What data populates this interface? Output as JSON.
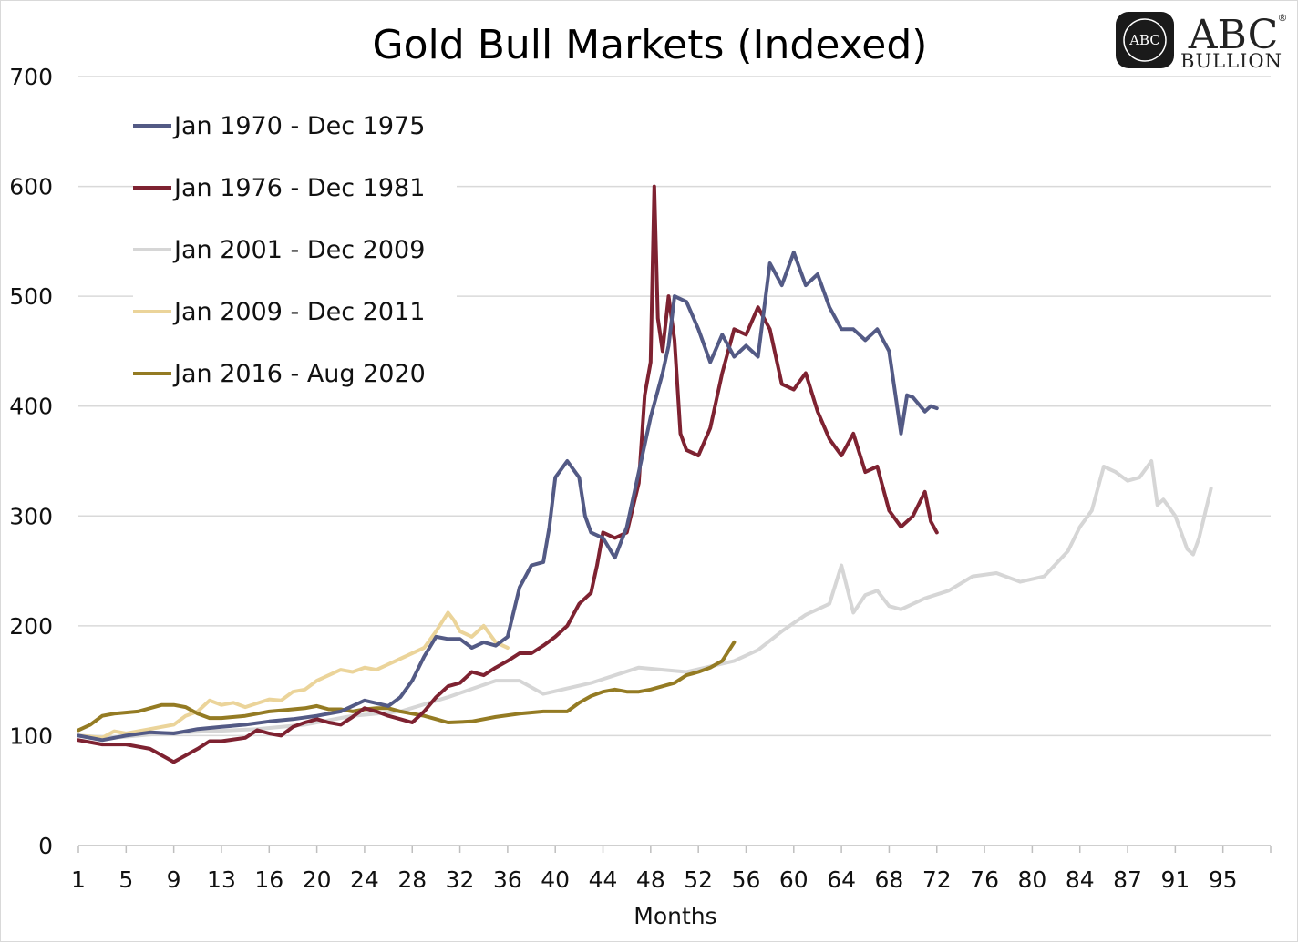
{
  "chart_data": {
    "type": "line",
    "title": "Gold Bull Markets (Indexed)",
    "xlabel": "Months",
    "ylabel": "",
    "ylim": [
      0,
      700
    ],
    "yticks": [
      "0",
      "100",
      "200",
      "300",
      "400",
      "500",
      "600",
      "700"
    ],
    "xticks": [
      "1",
      "5",
      "9",
      "13",
      "16",
      "20",
      "24",
      "28",
      "32",
      "36",
      "40",
      "44",
      "48",
      "52",
      "56",
      "60",
      "64",
      "68",
      "72",
      "76",
      "80",
      "84",
      "87",
      "91",
      "95"
    ],
    "grid": "horizontal",
    "legend_position": "top-left",
    "series": [
      {
        "name": "Jan 1970 - Dec 1975",
        "color": "#535a85",
        "points": [
          [
            1,
            100
          ],
          [
            3,
            96
          ],
          [
            5,
            100
          ],
          [
            7,
            103
          ],
          [
            9,
            102
          ],
          [
            11,
            106
          ],
          [
            13,
            108
          ],
          [
            15,
            110
          ],
          [
            17,
            113
          ],
          [
            19,
            115
          ],
          [
            21,
            118
          ],
          [
            23,
            122
          ],
          [
            25,
            132
          ],
          [
            27,
            127
          ],
          [
            28,
            135
          ],
          [
            29,
            150
          ],
          [
            30,
            172
          ],
          [
            31,
            190
          ],
          [
            32,
            188
          ],
          [
            33,
            188
          ],
          [
            34,
            180
          ],
          [
            35,
            185
          ],
          [
            36,
            182
          ],
          [
            37,
            190
          ],
          [
            38,
            235
          ],
          [
            39,
            255
          ],
          [
            40,
            258
          ],
          [
            40.5,
            290
          ],
          [
            41,
            335
          ],
          [
            42,
            350
          ],
          [
            43,
            335
          ],
          [
            43.5,
            300
          ],
          [
            44,
            285
          ],
          [
            45,
            280
          ],
          [
            46,
            262
          ],
          [
            47,
            290
          ],
          [
            48,
            340
          ],
          [
            49,
            390
          ],
          [
            50,
            430
          ],
          [
            50.5,
            455
          ],
          [
            51,
            500
          ],
          [
            52,
            495
          ],
          [
            53,
            470
          ],
          [
            54,
            440
          ],
          [
            55,
            465
          ],
          [
            56,
            445
          ],
          [
            57,
            455
          ],
          [
            58,
            445
          ],
          [
            59,
            530
          ],
          [
            60,
            510
          ],
          [
            61,
            540
          ],
          [
            62,
            510
          ],
          [
            63,
            520
          ],
          [
            64,
            490
          ],
          [
            65,
            470
          ],
          [
            66,
            470
          ],
          [
            67,
            460
          ],
          [
            68,
            470
          ],
          [
            69,
            450
          ],
          [
            70,
            375
          ],
          [
            70.5,
            410
          ],
          [
            71,
            408
          ],
          [
            72,
            395
          ],
          [
            72.5,
            400
          ],
          [
            73,
            398
          ]
        ]
      },
      {
        "name": "Jan 1976 - Dec 1981",
        "color": "#7e2231",
        "points": [
          [
            1,
            96
          ],
          [
            3,
            92
          ],
          [
            5,
            92
          ],
          [
            7,
            88
          ],
          [
            8,
            82
          ],
          [
            9,
            76
          ],
          [
            10,
            82
          ],
          [
            11,
            88
          ],
          [
            12,
            95
          ],
          [
            13,
            95
          ],
          [
            15,
            98
          ],
          [
            16,
            105
          ],
          [
            17,
            102
          ],
          [
            18,
            100
          ],
          [
            19,
            108
          ],
          [
            20,
            112
          ],
          [
            21,
            115
          ],
          [
            22,
            112
          ],
          [
            23,
            110
          ],
          [
            24,
            117
          ],
          [
            25,
            125
          ],
          [
            26,
            122
          ],
          [
            27,
            118
          ],
          [
            28,
            115
          ],
          [
            29,
            112
          ],
          [
            30,
            122
          ],
          [
            31,
            135
          ],
          [
            32,
            145
          ],
          [
            33,
            148
          ],
          [
            34,
            158
          ],
          [
            35,
            155
          ],
          [
            36,
            162
          ],
          [
            37,
            168
          ],
          [
            38,
            175
          ],
          [
            39,
            175
          ],
          [
            40,
            182
          ],
          [
            41,
            190
          ],
          [
            42,
            200
          ],
          [
            43,
            220
          ],
          [
            44,
            230
          ],
          [
            44.5,
            255
          ],
          [
            45,
            285
          ],
          [
            46,
            280
          ],
          [
            47,
            285
          ],
          [
            48,
            330
          ],
          [
            48.5,
            410
          ],
          [
            49,
            440
          ],
          [
            49.3,
            600
          ],
          [
            49.6,
            480
          ],
          [
            50,
            450
          ],
          [
            50.5,
            500
          ],
          [
            51,
            460
          ],
          [
            51.5,
            375
          ],
          [
            52,
            360
          ],
          [
            53,
            355
          ],
          [
            54,
            380
          ],
          [
            55,
            430
          ],
          [
            56,
            470
          ],
          [
            57,
            465
          ],
          [
            58,
            490
          ],
          [
            59,
            470
          ],
          [
            60,
            420
          ],
          [
            61,
            415
          ],
          [
            62,
            430
          ],
          [
            63,
            395
          ],
          [
            64,
            370
          ],
          [
            65,
            355
          ],
          [
            66,
            375
          ],
          [
            67,
            340
          ],
          [
            68,
            345
          ],
          [
            69,
            305
          ],
          [
            70,
            290
          ],
          [
            71,
            300
          ],
          [
            72,
            322
          ],
          [
            72.5,
            295
          ],
          [
            73,
            285
          ]
        ]
      },
      {
        "name": "Jan 2001 - Dec 2009",
        "color": "#d6d6d6",
        "points": [
          [
            1,
            100
          ],
          [
            4,
            98
          ],
          [
            8,
            102
          ],
          [
            12,
            104
          ],
          [
            16,
            106
          ],
          [
            20,
            110
          ],
          [
            24,
            118
          ],
          [
            28,
            122
          ],
          [
            32,
            135
          ],
          [
            36,
            150
          ],
          [
            38,
            150
          ],
          [
            40,
            138
          ],
          [
            44,
            148
          ],
          [
            48,
            162
          ],
          [
            52,
            158
          ],
          [
            56,
            168
          ],
          [
            58,
            178
          ],
          [
            60,
            195
          ],
          [
            62,
            210
          ],
          [
            64,
            220
          ],
          [
            65,
            255
          ],
          [
            66,
            212
          ],
          [
            67,
            228
          ],
          [
            68,
            232
          ],
          [
            69,
            218
          ],
          [
            70,
            215
          ],
          [
            72,
            225
          ],
          [
            74,
            232
          ],
          [
            76,
            245
          ],
          [
            78,
            248
          ],
          [
            80,
            240
          ],
          [
            82,
            245
          ],
          [
            84,
            268
          ],
          [
            85,
            290
          ],
          [
            86,
            305
          ],
          [
            87,
            345
          ],
          [
            88,
            340
          ],
          [
            89,
            332
          ],
          [
            90,
            335
          ],
          [
            91,
            350
          ],
          [
            91.5,
            310
          ],
          [
            92,
            315
          ],
          [
            93,
            300
          ],
          [
            94,
            270
          ],
          [
            94.5,
            265
          ],
          [
            95,
            280
          ],
          [
            96,
            325
          ]
        ]
      },
      {
        "name": "Jan 2009 - Dec 2011",
        "color": "#ebd49a",
        "points": [
          [
            1,
            100
          ],
          [
            3,
            98
          ],
          [
            4,
            104
          ],
          [
            5,
            102
          ],
          [
            7,
            106
          ],
          [
            9,
            110
          ],
          [
            10,
            118
          ],
          [
            11,
            122
          ],
          [
            12,
            132
          ],
          [
            13,
            128
          ],
          [
            14,
            130
          ],
          [
            15,
            126
          ],
          [
            17,
            133
          ],
          [
            18,
            132
          ],
          [
            19,
            140
          ],
          [
            20,
            142
          ],
          [
            21,
            150
          ],
          [
            22,
            155
          ],
          [
            23,
            160
          ],
          [
            24,
            158
          ],
          [
            25,
            162
          ],
          [
            26,
            160
          ],
          [
            27,
            165
          ],
          [
            28,
            170
          ],
          [
            29,
            175
          ],
          [
            30,
            180
          ],
          [
            31,
            195
          ],
          [
            32,
            212
          ],
          [
            32.5,
            205
          ],
          [
            33,
            195
          ],
          [
            34,
            190
          ],
          [
            34.5,
            195
          ],
          [
            35,
            200
          ],
          [
            36,
            185
          ],
          [
            37,
            180
          ]
        ]
      },
      {
        "name": "Jan 2016 - Aug 2020",
        "color": "#947b23",
        "points": [
          [
            1,
            105
          ],
          [
            2,
            110
          ],
          [
            3,
            118
          ],
          [
            4,
            120
          ],
          [
            6,
            122
          ],
          [
            7,
            125
          ],
          [
            8,
            128
          ],
          [
            9,
            128
          ],
          [
            10,
            126
          ],
          [
            11,
            120
          ],
          [
            12,
            116
          ],
          [
            13,
            116
          ],
          [
            15,
            118
          ],
          [
            16,
            120
          ],
          [
            17,
            122
          ],
          [
            18,
            123
          ],
          [
            19,
            124
          ],
          [
            20,
            125
          ],
          [
            21,
            127
          ],
          [
            22,
            124
          ],
          [
            23,
            124
          ],
          [
            24,
            122
          ],
          [
            25,
            124
          ],
          [
            26,
            125
          ],
          [
            27,
            125
          ],
          [
            28,
            122
          ],
          [
            29,
            120
          ],
          [
            30,
            118
          ],
          [
            31,
            115
          ],
          [
            32,
            112
          ],
          [
            34,
            113
          ],
          [
            36,
            117
          ],
          [
            38,
            120
          ],
          [
            40,
            122
          ],
          [
            42,
            122
          ],
          [
            43,
            130
          ],
          [
            44,
            136
          ],
          [
            45,
            140
          ],
          [
            46,
            142
          ],
          [
            47,
            140
          ],
          [
            48,
            140
          ],
          [
            49,
            142
          ],
          [
            50,
            145
          ],
          [
            51,
            148
          ],
          [
            52,
            155
          ],
          [
            53,
            158
          ],
          [
            54,
            162
          ],
          [
            55,
            168
          ],
          [
            56,
            185
          ]
        ]
      }
    ]
  },
  "logo": {
    "mark_text": "ABC",
    "brand": "ABC",
    "registered": "®",
    "tagline": "BULLION"
  }
}
